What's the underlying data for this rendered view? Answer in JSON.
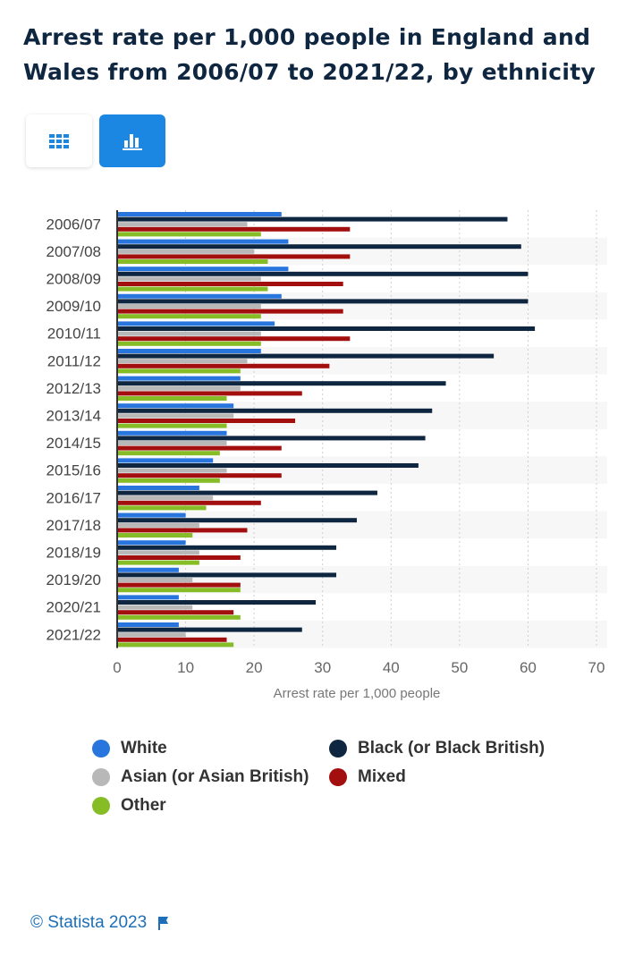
{
  "title": "Arrest rate per 1,000 people in England and Wales from 2006/07 to 2021/22, by ethnicity",
  "view_buttons": [
    {
      "icon": "table-grid-icon",
      "active": false
    },
    {
      "icon": "bar-chart-icon",
      "active": true
    }
  ],
  "accent_color": "#1c86e3",
  "footer": {
    "copyright": "© Statista 2023",
    "icon": "flag-icon"
  },
  "chart_data": {
    "type": "bar",
    "orientation": "horizontal",
    "categories": [
      "2006/07",
      "2007/08",
      "2008/09",
      "2009/10",
      "2010/11",
      "2011/12",
      "2012/13",
      "2013/14",
      "2014/15",
      "2015/16",
      "2016/17",
      "2017/18",
      "2018/19",
      "2019/20",
      "2020/21",
      "2021/22"
    ],
    "series": [
      {
        "name": "White",
        "color": "#2876dd",
        "values": [
          24,
          25,
          25,
          24,
          23,
          21,
          18,
          17,
          16,
          14,
          12,
          10,
          10,
          9,
          9,
          9
        ]
      },
      {
        "name": "Black (or Black British)",
        "color": "#0f2640",
        "values": [
          57,
          59,
          60,
          60,
          61,
          55,
          48,
          46,
          45,
          44,
          38,
          35,
          32,
          32,
          29,
          27
        ]
      },
      {
        "name": "Asian (or Asian British)",
        "color": "#b8b8b8",
        "values": [
          19,
          20,
          21,
          21,
          21,
          19,
          18,
          17,
          16,
          16,
          14,
          12,
          12,
          11,
          11,
          10
        ]
      },
      {
        "name": "Mixed",
        "color": "#a30f0f",
        "values": [
          34,
          34,
          33,
          33,
          34,
          31,
          27,
          26,
          24,
          24,
          21,
          19,
          18,
          18,
          17,
          16
        ]
      },
      {
        "name": "Other",
        "color": "#86bd27",
        "values": [
          21,
          22,
          22,
          21,
          21,
          18,
          16,
          16,
          15,
          15,
          13,
          11,
          12,
          18,
          18,
          17
        ]
      }
    ],
    "xlabel": "Arrest rate per 1,000 people",
    "xlim": [
      0,
      70
    ],
    "xticks": [
      "0",
      "10",
      "20",
      "30",
      "40",
      "50",
      "60",
      "70"
    ],
    "grid": true,
    "legend_position": "bottom"
  }
}
